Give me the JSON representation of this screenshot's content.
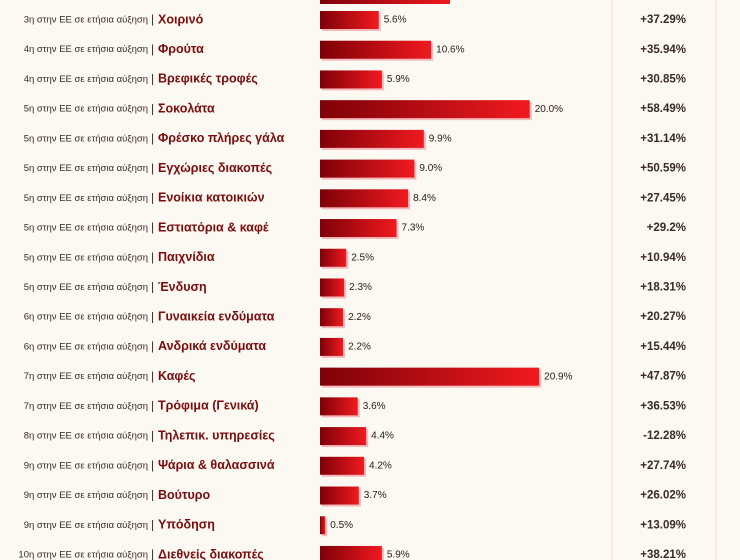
{
  "chart_data": {
    "type": "bar",
    "orientation": "horizontal",
    "color": "#f01a1f",
    "xlim": [
      0,
      35
    ],
    "separator": "|",
    "ranks": [
      "3η στην ΕΕ σε ετήσια αύξηση",
      "4η στην ΕΕ σε ετήσια αύξηση",
      "4η στην ΕΕ σε ετήσια αύξηση",
      "5η στην ΕΕ σε ετήσια αύξηση",
      "5η στην ΕΕ σε ετήσια αύξηση",
      "5η στην ΕΕ σε ετήσια αύξηση",
      "5η στην ΕΕ σε ετήσια αύξηση",
      "5η στην ΕΕ σε ετήσια αύξηση",
      "5η στην ΕΕ σε ετήσια αύξηση",
      "5η στην ΕΕ σε ετήσια αύξηση",
      "6η στην ΕΕ σε ετήσια αύξηση",
      "6η στην ΕΕ σε ετήσια αύξηση",
      "7η στην ΕΕ σε ετήσια αύξηση",
      "7η στην ΕΕ σε ετήσια αύξηση",
      "8η στην ΕΕ σε ετήσια αύξηση",
      "9η στην ΕΕ σε ετήσια αύξηση",
      "9η στην ΕΕ σε ετήσια αύξηση",
      "9η στην ΕΕ σε ετήσια αύξηση",
      "10η στην ΕΕ σε ετήσια αύξηση"
    ],
    "categories": [
      "Χοιρινό",
      "Φρούτα",
      "Βρεφικές τροφές",
      "Σοκολάτα",
      "Φρέσκο πλήρες γάλα",
      "Εγχώριες διακοπές",
      "Ενοίκια κατοικιών",
      "Εστιατόρια & καφέ",
      "Παιχνίδια",
      "Ένδυση",
      "Γυναικεία ενδύματα",
      "Ανδρικά ενδύματα",
      "Καφές",
      "Τρόφιμα (Γενικά)",
      "Τηλεπικ. υπηρεσίες",
      "Ψάρια & θαλασσινά",
      "Βούτυρο",
      "Υπόδηση",
      "Διεθνείς διακοπές"
    ],
    "values": [
      5.6,
      10.6,
      5.9,
      20.0,
      9.9,
      9.0,
      8.4,
      7.3,
      2.5,
      2.3,
      2.2,
      2.2,
      20.9,
      3.6,
      4.4,
      4.2,
      3.7,
      0.5,
      5.9
    ],
    "value_labels": [
      "5.6%",
      "10.6%",
      "5.9%",
      "20.0%",
      "9.9%",
      "9.0%",
      "8.4%",
      "7.3%",
      "2.5%",
      "2.3%",
      "2.2%",
      "2.2%",
      "20.9%",
      "3.6%",
      "4.4%",
      "4.2%",
      "3.7%",
      "0.5%",
      "5.9%"
    ],
    "annual_change": [
      "+37.29%",
      "+35.94%",
      "+30.85%",
      "+58.49%",
      "+31.14%",
      "+50.59%",
      "+27.45%",
      "+29.2%",
      "+10.94%",
      "+18.31%",
      "+20.27%",
      "+15.44%",
      "+47.87%",
      "+36.53%",
      "-12.28%",
      "+27.74%",
      "+26.02%",
      "+13.09%",
      "+38.21%"
    ]
  }
}
